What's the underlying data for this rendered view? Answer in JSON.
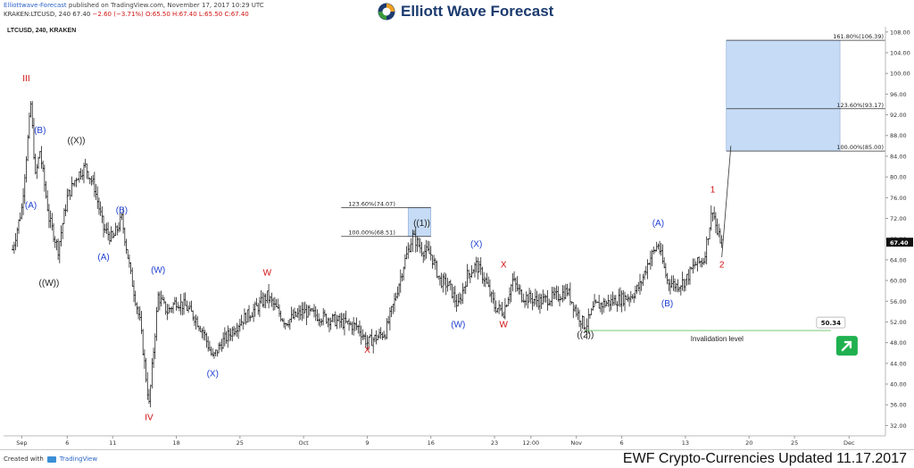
{
  "header": {
    "publisher": "Elliottwave-Forecast",
    "published_text": "published on TradingView.com, November 17, 2017 10:29 UTC",
    "ohlc_prefix": "KRAKEN:LTCUSD, 240",
    "ohlc_last": "67.40",
    "ohlc_change": "−2.60 (−3.71%)",
    "ohlc_values": "O:65.50 H:67.40 L:65.50 C:67.40",
    "brand": "Elliott Wave Forecast",
    "brand_colors": [
      "#3a9a3a",
      "#f0a020",
      "#1c3b6e"
    ]
  },
  "footer": {
    "created_with": "Created with",
    "platform": "TradingView",
    "update_text": "EWF Crypto-Currencies Updated 11.17.2017"
  },
  "chart_data": {
    "type": "ohlc",
    "symbol_label": "LTCUSD, 240, KRAKEN",
    "y_range": [
      30,
      109
    ],
    "price_axis_ticks": [
      "32.00",
      "36.00",
      "40.00",
      "44.00",
      "48.00",
      "52.00",
      "56.00",
      "60.00",
      "64.00",
      "68.00",
      "72.00",
      "76.00",
      "80.00",
      "84.00",
      "88.00",
      "92.00",
      "96.00",
      "100.00",
      "104.00",
      "108.00"
    ],
    "time_axis_ticks": [
      "Sep",
      "6",
      "11",
      "18",
      "25",
      "Oct",
      "9",
      "16",
      "23",
      "12:00",
      "Nov",
      "6",
      "13",
      "20",
      "25",
      "Dec"
    ],
    "time_tick_dates": [
      "2017-09-01",
      "2017-09-06",
      "2017-09-11",
      "2017-09-18",
      "2017-09-25",
      "2017-10-02",
      "2017-10-09",
      "2017-10-16",
      "2017-10-23",
      "2017-10-27",
      "2017-11-01",
      "2017-11-06",
      "2017-11-13",
      "2017-11-20",
      "2017-11-25",
      "2017-12-01"
    ],
    "current_price": "67.40",
    "price_path": [
      [
        "2017-08-31",
        66
      ],
      [
        "2017-09-01",
        74
      ],
      [
        "2017-09-02",
        94
      ],
      [
        "2017-09-02 12:00",
        80
      ],
      [
        "2017-09-03",
        85
      ],
      [
        "2017-09-04",
        72
      ],
      [
        "2017-09-05",
        66
      ],
      [
        "2017-09-06",
        76
      ],
      [
        "2017-09-07",
        80
      ],
      [
        "2017-09-08",
        82
      ],
      [
        "2017-09-09",
        78
      ],
      [
        "2017-09-10",
        70
      ],
      [
        "2017-09-11",
        68
      ],
      [
        "2017-09-12",
        72
      ],
      [
        "2017-09-13",
        61
      ],
      [
        "2017-09-14",
        52
      ],
      [
        "2017-09-15",
        36
      ],
      [
        "2017-09-16",
        57
      ],
      [
        "2017-09-17",
        54
      ],
      [
        "2017-09-18",
        56
      ],
      [
        "2017-09-19",
        55
      ],
      [
        "2017-09-20",
        53
      ],
      [
        "2017-09-21",
        50
      ],
      [
        "2017-09-22",
        45
      ],
      [
        "2017-09-23",
        48
      ],
      [
        "2017-09-25",
        52
      ],
      [
        "2017-09-27",
        55
      ],
      [
        "2017-09-28",
        57
      ],
      [
        "2017-09-30",
        52
      ],
      [
        "2017-10-02",
        54
      ],
      [
        "2017-10-04",
        53
      ],
      [
        "2017-10-06",
        52
      ],
      [
        "2017-10-08",
        51
      ],
      [
        "2017-10-09",
        48
      ],
      [
        "2017-10-10",
        49
      ],
      [
        "2017-10-11",
        50
      ],
      [
        "2017-10-12",
        56
      ],
      [
        "2017-10-13",
        63
      ],
      [
        "2017-10-14",
        68.5
      ],
      [
        "2017-10-15",
        66
      ],
      [
        "2017-10-16",
        65
      ],
      [
        "2017-10-17",
        60
      ],
      [
        "2017-10-18",
        59
      ],
      [
        "2017-10-19",
        55
      ],
      [
        "2017-10-20",
        61
      ],
      [
        "2017-10-21",
        63
      ],
      [
        "2017-10-22",
        60
      ],
      [
        "2017-10-23",
        55
      ],
      [
        "2017-10-24",
        54
      ],
      [
        "2017-10-25",
        60
      ],
      [
        "2017-10-26",
        57
      ],
      [
        "2017-10-28",
        56
      ],
      [
        "2017-10-30",
        57
      ],
      [
        "2017-10-31",
        58
      ],
      [
        "2017-11-01",
        54
      ],
      [
        "2017-11-02",
        51
      ],
      [
        "2017-11-03",
        55
      ],
      [
        "2017-11-05",
        56
      ],
      [
        "2017-11-07",
        57
      ],
      [
        "2017-11-08",
        59
      ],
      [
        "2017-11-09",
        64
      ],
      [
        "2017-11-10",
        67
      ],
      [
        "2017-11-11",
        60
      ],
      [
        "2017-11-12",
        59
      ],
      [
        "2017-11-13",
        60
      ],
      [
        "2017-11-14",
        63
      ],
      [
        "2017-11-15",
        64
      ],
      [
        "2017-11-16",
        74
      ],
      [
        "2017-11-16 12:00",
        69
      ],
      [
        "2017-11-17",
        67.4
      ]
    ],
    "wave_labels": [
      {
        "text": "III",
        "date": "2017-09-01 12:00",
        "price": 98.5,
        "color": "#d01010"
      },
      {
        "text": "(B)",
        "date": "2017-09-03",
        "price": 88.5,
        "color": "#1f3fd0"
      },
      {
        "text": "(A)",
        "date": "2017-09-02",
        "price": 74,
        "color": "#1f3fd0"
      },
      {
        "text": "((X))",
        "date": "2017-09-07",
        "price": 86.5,
        "color": "#222222"
      },
      {
        "text": "((W))",
        "date": "2017-09-04",
        "price": 59,
        "color": "#222222"
      },
      {
        "text": "(B)",
        "date": "2017-09-12",
        "price": 73,
        "color": "#1f3fd0"
      },
      {
        "text": "(A)",
        "date": "2017-09-10",
        "price": 64,
        "color": "#1f3fd0"
      },
      {
        "text": "(W)",
        "date": "2017-09-16",
        "price": 61.5,
        "color": "#1f3fd0"
      },
      {
        "text": "IV",
        "date": "2017-09-15",
        "price": 33,
        "color": "#d01010"
      },
      {
        "text": "(X)",
        "date": "2017-09-22",
        "price": 41.5,
        "color": "#1f3fd0"
      },
      {
        "text": "W",
        "date": "2017-09-28",
        "price": 61,
        "color": "#d01010"
      },
      {
        "text": "X",
        "date": "2017-10-09",
        "price": 46,
        "color": "#d01010"
      },
      {
        "text": "((1))",
        "date": "2017-10-15",
        "price": 70.5,
        "color": "#222222"
      },
      {
        "text": "(W)",
        "date": "2017-10-19",
        "price": 51,
        "color": "#1f3fd0"
      },
      {
        "text": "(X)",
        "date": "2017-10-21",
        "price": 66.5,
        "color": "#1f3fd0"
      },
      {
        "text": "X",
        "date": "2017-10-24",
        "price": 62.5,
        "color": "#d01010"
      },
      {
        "text": "W",
        "date": "2017-10-24",
        "price": 51,
        "color": "#d01010"
      },
      {
        "text": "((2))",
        "date": "2017-11-02",
        "price": 49,
        "color": "#222222"
      },
      {
        "text": "(A)",
        "date": "2017-11-10",
        "price": 70.5,
        "color": "#1f3fd0"
      },
      {
        "text": "(B)",
        "date": "2017-11-11",
        "price": 55,
        "color": "#1f3fd0"
      },
      {
        "text": "1",
        "date": "2017-11-16",
        "price": 77,
        "color": "#d01010"
      },
      {
        "text": "2",
        "date": "2017-11-17",
        "price": 62.5,
        "color": "#d01010"
      }
    ],
    "fib_boxes": [
      {
        "from": "2017-10-13 12:00",
        "to": "2017-10-16",
        "low": 68.51,
        "high": 74.07,
        "color": "#c6dbf5",
        "levels": [
          {
            "label": "123.60%(74.07)",
            "price": 74.07
          },
          {
            "label": "100.00%(68.51)",
            "price": 68.51
          }
        ]
      },
      {
        "from": "2017-11-17 12:00",
        "to": "2017-11-30",
        "low": 85.0,
        "high": 106.39,
        "color": "#c6dbf5",
        "levels": [
          {
            "label": "161.80%(106.39)",
            "price": 106.39
          },
          {
            "label": "123.60%(93.17)",
            "price": 93.17
          },
          {
            "label": "100.00%(85.00)",
            "price": 85.0
          }
        ]
      }
    ],
    "projection_line": [
      [
        "2017-11-17",
        64.5
      ],
      [
        "2017-11-18",
        86.0
      ]
    ],
    "invalidation": {
      "label": "Invalidation level",
      "price": 50.34,
      "value_label": "50.34",
      "from": "2017-11-02",
      "to": "2017-11-29"
    },
    "colors": {
      "bars": "#222222",
      "red": "#d01010",
      "blue": "#1f3fd0",
      "green_line": "#5fc25f",
      "box": "#c6dbf5",
      "arrow": "#1fb14f"
    }
  }
}
